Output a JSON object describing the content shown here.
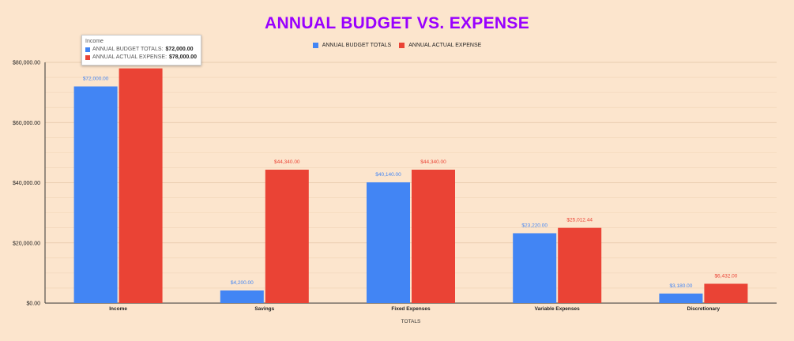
{
  "chart_data": {
    "type": "bar",
    "title": "ANNUAL BUDGET VS. EXPENSE",
    "xlabel": "TOTALS",
    "ylabel": "",
    "categories": [
      "Income",
      "Savings",
      "Fixed Expenses",
      "Variable Expenses",
      "Discretionary"
    ],
    "series": [
      {
        "name": "ANNUAL BUDGET TOTALS",
        "color": "#4285f4",
        "values": [
          72000,
          4200,
          40140,
          23220,
          3180
        ],
        "labels": [
          "$72,000.00",
          "$4,200.00",
          "$40,140.00",
          "$23,220.00",
          "$3,180.00"
        ]
      },
      {
        "name": "ANNUAL ACTUAL EXPENSE",
        "color": "#ea4335",
        "values": [
          78000,
          44340,
          44340,
          25012.44,
          6432
        ],
        "labels": [
          "$78,000.00",
          "$44,340.00",
          "$44,340.00",
          "$25,012.44",
          "$6,432.00"
        ]
      }
    ],
    "ylim": [
      0,
      80000
    ],
    "yticks": [
      0,
      20000,
      40000,
      60000,
      80000
    ],
    "ytick_labels": [
      "$0.00",
      "$20,000.00",
      "$40,000.00",
      "$60,000.00",
      "$80,000.00"
    ],
    "grid": true,
    "legend_position": "top",
    "title_color": "#9900ff",
    "background": "#fce5cd"
  },
  "tooltip": {
    "title": "Income",
    "rows": [
      {
        "label": "ANNUAL BUDGET TOTALS:",
        "value": "$72,000.00",
        "color": "#4285f4"
      },
      {
        "label": "ANNUAL ACTUAL EXPENSE:",
        "value": "$78,000.00",
        "color": "#ea4335"
      }
    ]
  }
}
